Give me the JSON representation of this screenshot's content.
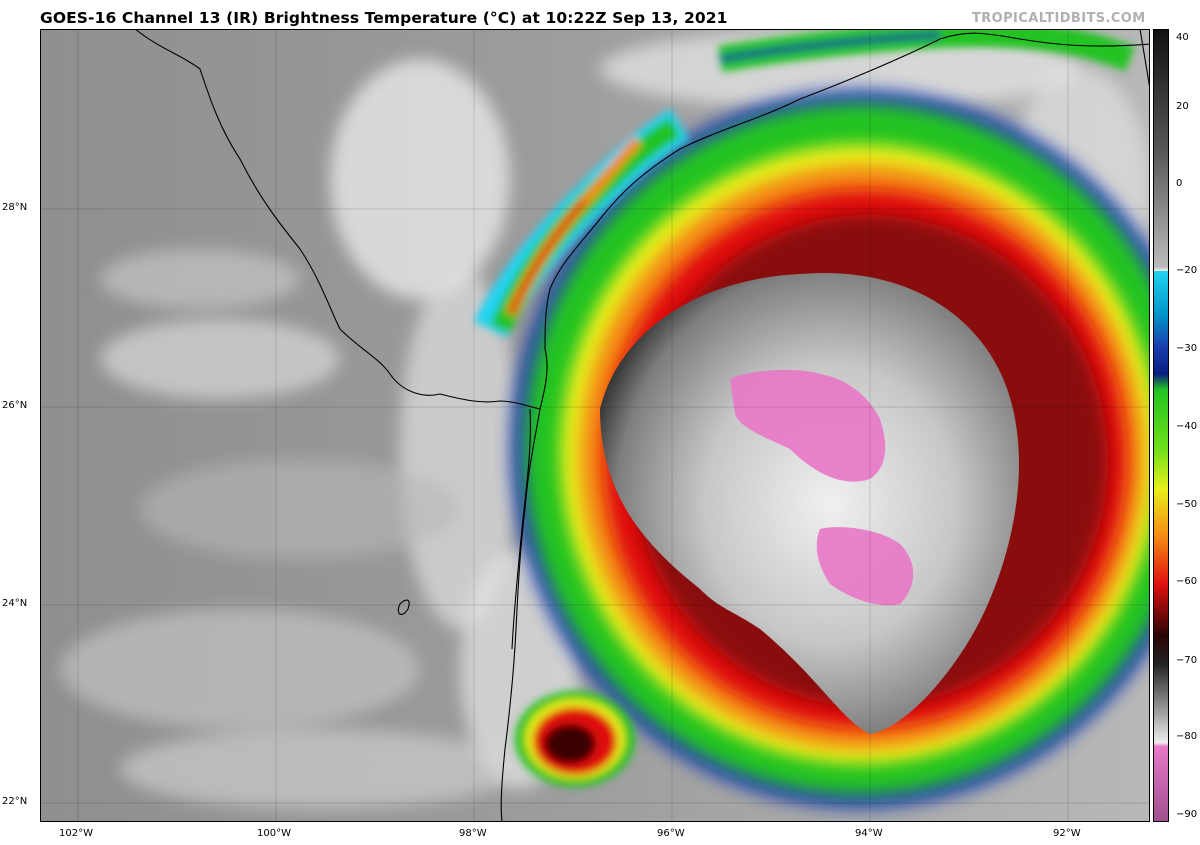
{
  "header": {
    "title": "GOES-16 Channel 13 (IR) Brightness Temperature (°C) at 10:22Z Sep 13, 2021",
    "credit": "TROPICALTIDBITS.COM"
  },
  "map": {
    "lat_labels": [
      "28°N",
      "26°N",
      "24°N",
      "22°N"
    ],
    "lon_labels": [
      "102°W",
      "100°W",
      "98°W",
      "96°W",
      "94°W",
      "92°W"
    ]
  },
  "colorbar": {
    "range": [
      -90,
      40
    ],
    "ticks": [
      "40",
      "20",
      "0",
      "−20",
      "−30",
      "−40",
      "−50",
      "−60",
      "−70",
      "−80",
      "−90"
    ],
    "colors": {
      "warm": "#9a9a9a",
      "cold_gray": "#d8d8d8",
      "cyan": "#22d3f2",
      "blue": "#1b3fb0",
      "green": "#22c322",
      "yellow": "#e8ef1a",
      "orange": "#f58a12",
      "red": "#e01010",
      "dark_red": "#5a0a0a",
      "magenta": "#e878c8"
    }
  }
}
